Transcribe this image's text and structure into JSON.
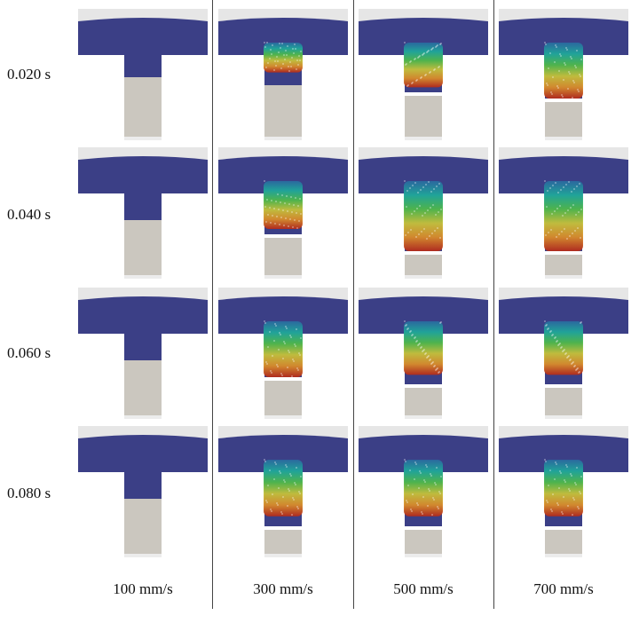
{
  "figure": {
    "time_labels": [
      "0.020 s",
      "0.040 s",
      "0.060 s",
      "0.080 s"
    ],
    "speed_labels": [
      "100 mm/s",
      "300 mm/s",
      "500 mm/s",
      "700 mm/s"
    ],
    "cells": [
      [
        {
          "speed": "100 mm/s",
          "time": "0.020 s",
          "plunger_travel": 0.33,
          "colored_fill": 0.0,
          "colors": "blue"
        },
        {
          "speed": "300 mm/s",
          "time": "0.020 s",
          "plunger_travel": 0.45,
          "colored_fill": 0.7,
          "colors": "teal-green"
        },
        {
          "speed": "500 mm/s",
          "time": "0.020 s",
          "plunger_travel": 0.55,
          "colored_fill": 0.9,
          "colors": "teal-green-yellow"
        },
        {
          "speed": "700 mm/s",
          "time": "0.020 s",
          "plunger_travel": 0.65,
          "colored_fill": 1.0,
          "colors": "teal-green-yellow-red"
        }
      ],
      [
        {
          "speed": "100 mm/s",
          "time": "0.040 s",
          "plunger_travel": 0.4,
          "colored_fill": 0.0,
          "colors": "blue"
        },
        {
          "speed": "300 mm/s",
          "time": "0.040 s",
          "plunger_travel": 0.6,
          "colored_fill": 0.9,
          "colors": "teal-green-yellow"
        },
        {
          "speed": "500 mm/s",
          "time": "0.040 s",
          "plunger_travel": 0.85,
          "colored_fill": 1.0,
          "colors": "teal-green-yellow-orange-red"
        },
        {
          "speed": "700 mm/s",
          "time": "0.040 s",
          "plunger_travel": 0.85,
          "colored_fill": 1.0,
          "colors": "teal-green-yellow-orange-red"
        }
      ],
      [
        {
          "speed": "100 mm/s",
          "time": "0.060 s",
          "plunger_travel": 0.4,
          "colored_fill": 0.0,
          "colors": "blue"
        },
        {
          "speed": "300 mm/s",
          "time": "0.060 s",
          "plunger_travel": 0.65,
          "colored_fill": 1.0,
          "colors": "teal-green-yellow"
        },
        {
          "speed": "500 mm/s",
          "time": "0.060 s",
          "plunger_travel": 0.75,
          "colored_fill": 0.85,
          "colors": "teal-green-yellow"
        },
        {
          "speed": "700 mm/s",
          "time": "0.060 s",
          "plunger_travel": 0.75,
          "colored_fill": 0.85,
          "colors": "teal-green-yellow"
        }
      ],
      [
        {
          "speed": "100 mm/s",
          "time": "0.080 s",
          "plunger_travel": 0.4,
          "colored_fill": 0.0,
          "colors": "blue"
        },
        {
          "speed": "300 mm/s",
          "time": "0.080 s",
          "plunger_travel": 0.8,
          "colored_fill": 0.85,
          "colors": "teal-green-yellow"
        },
        {
          "speed": "500 mm/s",
          "time": "0.080 s",
          "plunger_travel": 0.8,
          "colored_fill": 0.85,
          "colors": "teal-green-yellow"
        },
        {
          "speed": "700 mm/s",
          "time": "0.080 s",
          "plunger_travel": 0.8,
          "colored_fill": 0.85,
          "colors": "teal-green-yellow"
        }
      ]
    ],
    "colors": {
      "material_blue": "#3b3f86",
      "plunger_gray": "#cbc7bf",
      "mold_light": "#e6e6e6",
      "gradient": [
        "#2a6aa0",
        "#1fa89a",
        "#4fb94a",
        "#c6c23a",
        "#d98c2a",
        "#b52a1a"
      ]
    }
  }
}
